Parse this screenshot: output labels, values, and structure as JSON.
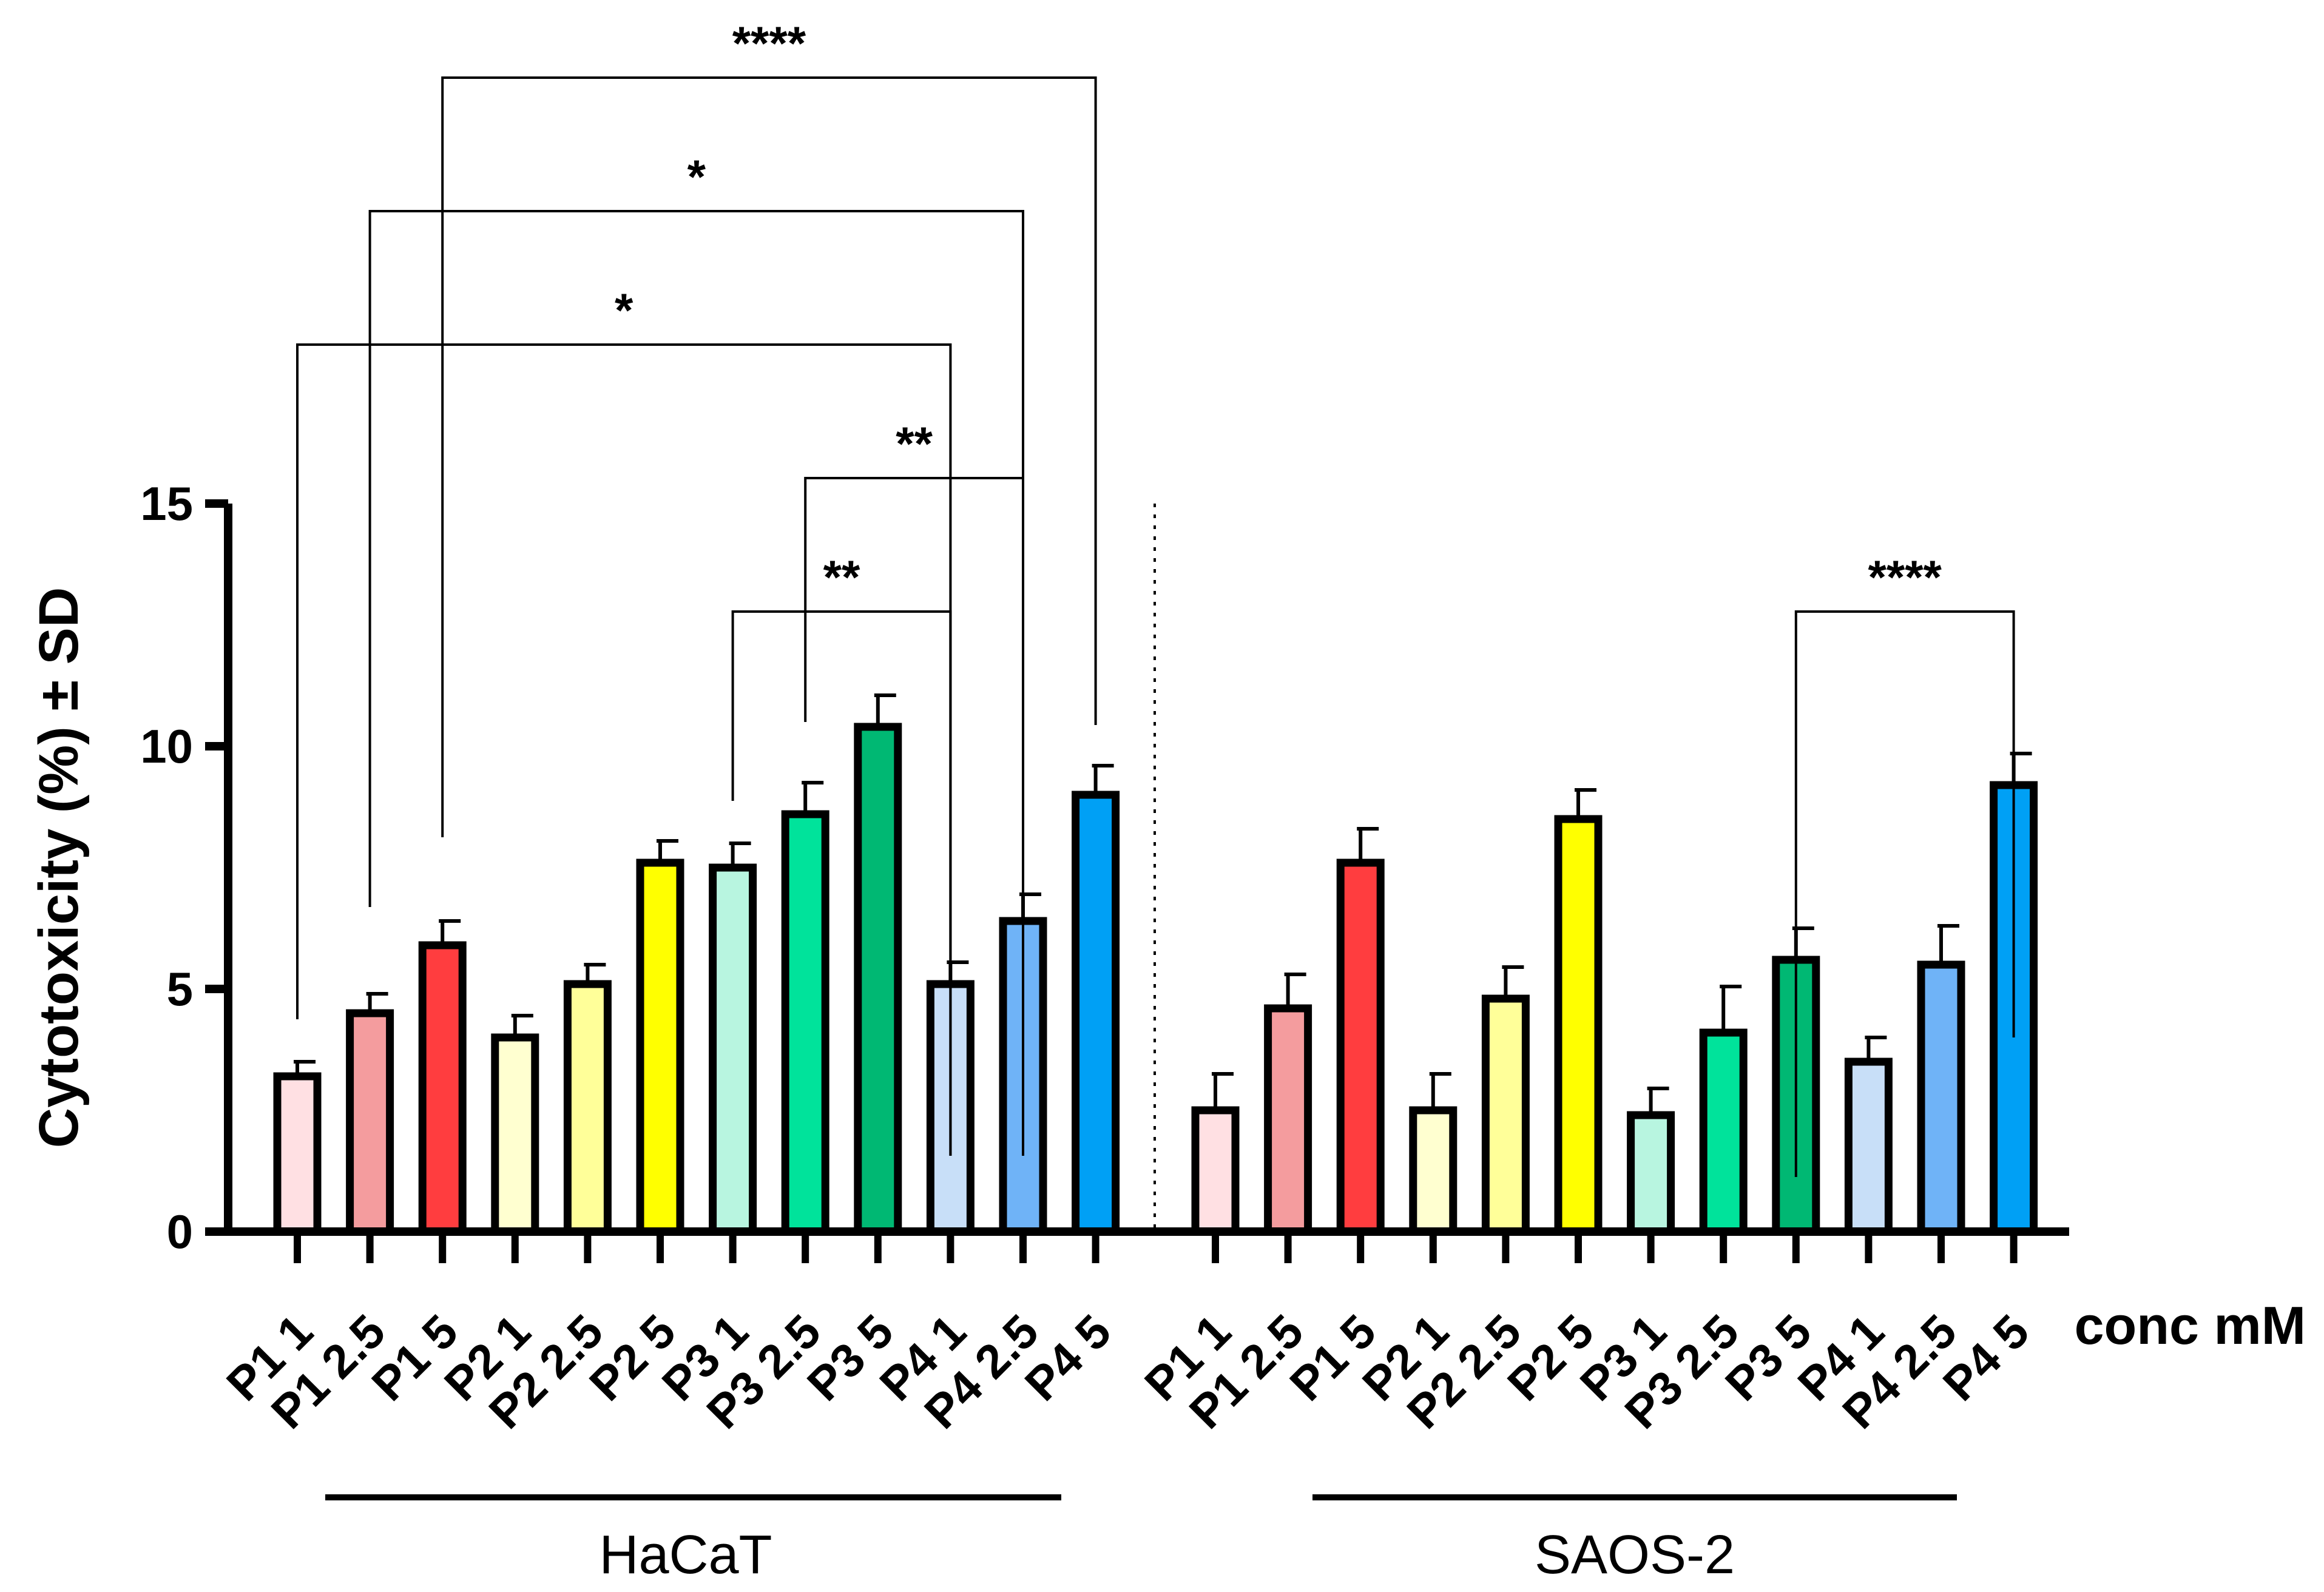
{
  "chart_data": {
    "type": "bar",
    "ylabel": "Cytotoxicity (%) ± SD",
    "xlabel": "conc mM",
    "ylim": [
      0,
      15
    ],
    "yticks": [
      0,
      5,
      10,
      15
    ],
    "groups": [
      {
        "name": "HaCaT",
        "categories": [
          "P1 1",
          "P1 2.5",
          "P1 5",
          "P2 1",
          "P2 2.5",
          "P2 5",
          "P3 1",
          "P3 2.5",
          "P3 5",
          "P4 1",
          "P4 2.5",
          "P4 5"
        ],
        "values": [
          3.2,
          4.5,
          5.9,
          4.0,
          5.1,
          7.6,
          7.5,
          8.6,
          10.4,
          5.1,
          6.4,
          9.0
        ],
        "errors": [
          0.3,
          0.4,
          0.5,
          0.45,
          0.4,
          0.45,
          0.5,
          0.65,
          0.65,
          0.45,
          0.55,
          0.6
        ],
        "colors": [
          "#ffe0e3",
          "#f49c9e",
          "#ff3d3f",
          "#ffffd0",
          "#ffff99",
          "#ffff00",
          "#b8f5e0",
          "#00e39b",
          "#00b873",
          "#c8dff8",
          "#6fb3f7",
          "#00a0f5"
        ],
        "comparisons": [
          {
            "from": 6,
            "to": 9,
            "label": "**"
          },
          {
            "from": 7,
            "to": 10,
            "label": "**"
          },
          {
            "from": 0,
            "to": 9,
            "label": "*"
          },
          {
            "from": 1,
            "to": 10,
            "label": "*"
          },
          {
            "from": 2,
            "to": 11,
            "label": "****"
          }
        ]
      },
      {
        "name": "SAOS-2",
        "categories": [
          "P1 1",
          "P1 2.5",
          "P1 5",
          "P2 1",
          "P2 2.5",
          "P2 5",
          "P3 1",
          "P3 2.5",
          "P3 5",
          "P4 1",
          "P4 2.5",
          "P4 5"
        ],
        "values": [
          2.5,
          4.6,
          7.6,
          2.5,
          4.8,
          8.5,
          2.4,
          4.1,
          5.6,
          3.5,
          5.5,
          9.2
        ],
        "errors": [
          0.75,
          0.7,
          0.7,
          0.75,
          0.65,
          0.6,
          0.55,
          0.95,
          0.65,
          0.5,
          0.8,
          0.65
        ],
        "colors": [
          "#ffe0e3",
          "#f49c9e",
          "#ff3d3f",
          "#ffffd0",
          "#ffff99",
          "#ffff00",
          "#b8f5e0",
          "#00e39b",
          "#00b873",
          "#c8dff8",
          "#6fb3f7",
          "#00a0f5"
        ],
        "comparisons": [
          {
            "from": 8,
            "to": 11,
            "label": "****"
          }
        ]
      }
    ]
  }
}
